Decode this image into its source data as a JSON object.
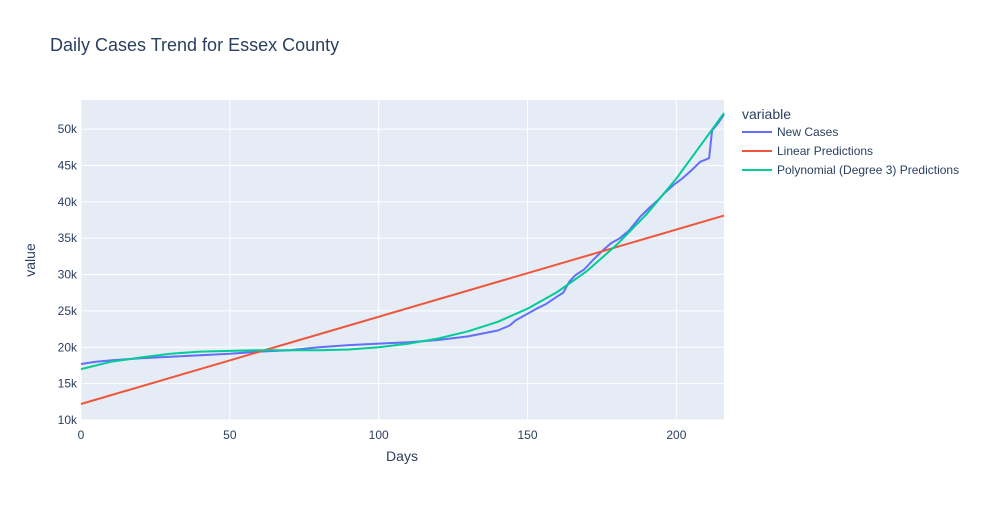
{
  "chart_data": {
    "type": "line",
    "title": "Daily Cases Trend for Essex County",
    "xlabel": "Days",
    "ylabel": "value",
    "xlim": [
      0,
      216
    ],
    "ylim": [
      10000,
      54000
    ],
    "x_ticks": [
      0,
      50,
      100,
      150,
      200
    ],
    "y_ticks": [
      10000,
      15000,
      20000,
      25000,
      30000,
      35000,
      40000,
      45000,
      50000
    ],
    "y_tick_labels": [
      "10k",
      "15k",
      "20k",
      "25k",
      "30k",
      "35k",
      "40k",
      "45k",
      "50k"
    ],
    "grid": true,
    "legend_title": "variable",
    "legend_position": "right",
    "series": [
      {
        "name": "New Cases",
        "color": "#636efa",
        "points": [
          [
            0,
            17700
          ],
          [
            5,
            18000
          ],
          [
            10,
            18200
          ],
          [
            20,
            18500
          ],
          [
            30,
            18700
          ],
          [
            40,
            18900
          ],
          [
            50,
            19100
          ],
          [
            60,
            19400
          ],
          [
            70,
            19600
          ],
          [
            80,
            20000
          ],
          [
            90,
            20300
          ],
          [
            100,
            20500
          ],
          [
            110,
            20700
          ],
          [
            120,
            21000
          ],
          [
            130,
            21500
          ],
          [
            140,
            22300
          ],
          [
            144,
            23000
          ],
          [
            146,
            23700
          ],
          [
            150,
            24600
          ],
          [
            153,
            25300
          ],
          [
            156,
            25900
          ],
          [
            160,
            27000
          ],
          [
            162,
            27500
          ],
          [
            164,
            29000
          ],
          [
            166,
            29900
          ],
          [
            169,
            30700
          ],
          [
            172,
            32000
          ],
          [
            175,
            33200
          ],
          [
            178,
            34300
          ],
          [
            181,
            35000
          ],
          [
            184,
            36000
          ],
          [
            186,
            37000
          ],
          [
            188,
            38000
          ],
          [
            191,
            39200
          ],
          [
            194,
            40300
          ],
          [
            196,
            41200
          ],
          [
            199,
            42300
          ],
          [
            202,
            43200
          ],
          [
            205,
            44300
          ],
          [
            208,
            45500
          ],
          [
            211,
            46000
          ],
          [
            212,
            49800
          ],
          [
            214,
            50800
          ],
          [
            216,
            52000
          ]
        ]
      },
      {
        "name": "Linear Predictions",
        "color": "#ef553b",
        "points": [
          [
            0,
            12200
          ],
          [
            216,
            38100
          ]
        ]
      },
      {
        "name": "Polynomial (Degree 3) Predictions",
        "color": "#00cc96",
        "points": [
          [
            0,
            17000
          ],
          [
            10,
            18000
          ],
          [
            20,
            18600
          ],
          [
            30,
            19100
          ],
          [
            40,
            19400
          ],
          [
            50,
            19500
          ],
          [
            60,
            19600
          ],
          [
            70,
            19600
          ],
          [
            80,
            19600
          ],
          [
            90,
            19700
          ],
          [
            100,
            20000
          ],
          [
            110,
            20500
          ],
          [
            120,
            21200
          ],
          [
            130,
            22200
          ],
          [
            140,
            23500
          ],
          [
            150,
            25300
          ],
          [
            160,
            27600
          ],
          [
            170,
            30500
          ],
          [
            180,
            34100
          ],
          [
            190,
            38300
          ],
          [
            200,
            43200
          ],
          [
            210,
            48800
          ],
          [
            216,
            52200
          ]
        ]
      }
    ]
  }
}
